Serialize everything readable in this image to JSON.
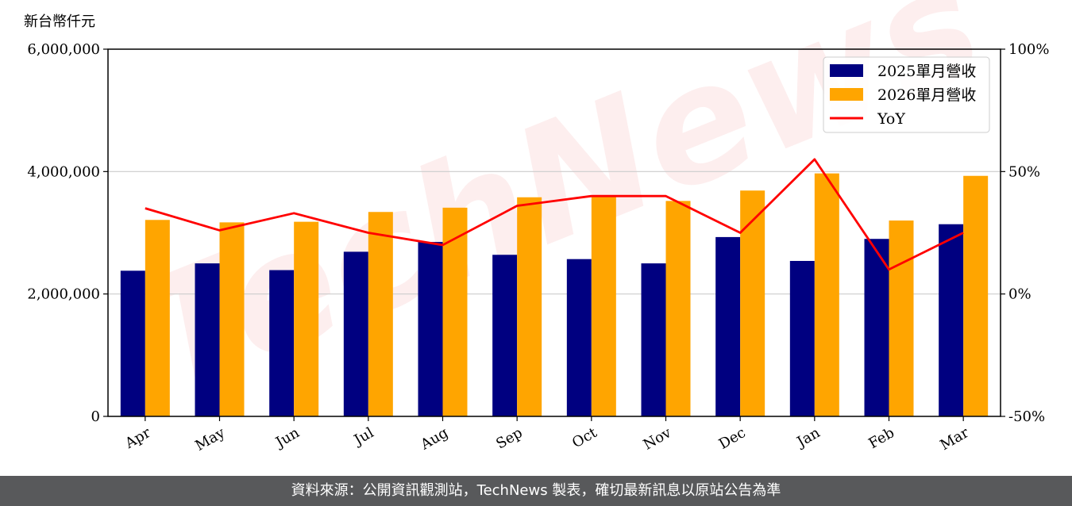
{
  "chart_data": {
    "type": "bar",
    "unit_label": "新台幣仟元",
    "categories": [
      "Apr",
      "May",
      "Jun",
      "Jul",
      "Aug",
      "Sep",
      "Oct",
      "Nov",
      "Dec",
      "Jan",
      "Feb",
      "Mar"
    ],
    "series": [
      {
        "name": "2025單月營收",
        "type": "bar",
        "axis": "left",
        "color": "#000080",
        "values": [
          2380000,
          2500000,
          2390000,
          2690000,
          2850000,
          2640000,
          2570000,
          2500000,
          2930000,
          2540000,
          2900000,
          3140000
        ]
      },
      {
        "name": "2026單月營收",
        "type": "bar",
        "axis": "left",
        "color": "#ffa500",
        "values": [
          3210000,
          3170000,
          3180000,
          3340000,
          3410000,
          3580000,
          3590000,
          3520000,
          3690000,
          3970000,
          3200000,
          3930000
        ]
      },
      {
        "name": "YoY",
        "type": "line",
        "axis": "right",
        "color": "#ff0000",
        "values": [
          35,
          26,
          33,
          25,
          20,
          36,
          40,
          40,
          25,
          55,
          10,
          25
        ]
      }
    ],
    "y_left": {
      "lim": [
        0,
        6000000
      ],
      "ticks": [
        0,
        2000000,
        4000000,
        6000000
      ],
      "tick_labels": [
        "0",
        "2,000,000",
        "4,000,000",
        "6,000,000"
      ]
    },
    "y_right": {
      "lim": [
        -50,
        100
      ],
      "ticks": [
        -50,
        0,
        50,
        100
      ],
      "tick_labels": [
        "-50%",
        "0%",
        "50%",
        "100%"
      ]
    },
    "grid": "horizontal",
    "legend_position": "top-right"
  },
  "watermark": "TechNews",
  "footer": {
    "text": "資料來源：公開資訊觀測站，TechNews 製表，確切最新訊息以原站公告為準"
  }
}
